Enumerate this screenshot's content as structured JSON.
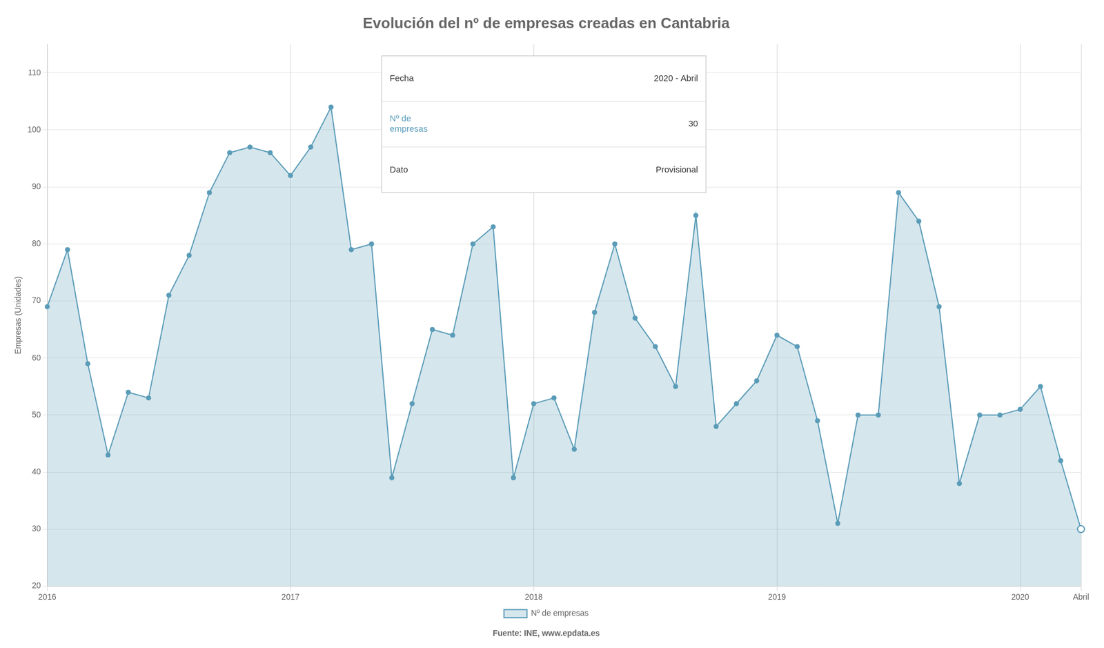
{
  "chart_data": {
    "type": "line",
    "title": "Evolución del nº de empresas creadas en Cantabria",
    "ylabel": "Empresas (Unidades)",
    "source": "Fuente: INE, www.epdata.es",
    "categories": [
      "2016",
      null,
      null,
      null,
      null,
      null,
      null,
      null,
      null,
      null,
      null,
      null,
      "2017",
      null,
      null,
      null,
      null,
      null,
      null,
      null,
      null,
      null,
      null,
      null,
      "2018",
      null,
      null,
      null,
      null,
      null,
      null,
      null,
      null,
      null,
      null,
      null,
      "2019",
      null,
      null,
      null,
      null,
      null,
      null,
      null,
      null,
      null,
      null,
      null,
      "2020",
      null,
      null,
      "Abril"
    ],
    "series": [
      {
        "name": "Nº de empresas",
        "color": "#5a9cb8",
        "marker": "circle",
        "values": [
          69,
          79,
          59,
          43,
          54,
          53,
          71,
          78,
          89,
          96,
          97,
          96,
          92,
          97,
          104,
          79,
          80,
          39,
          52,
          65,
          64,
          80,
          83,
          39,
          52,
          53,
          44,
          68,
          80,
          67,
          62,
          55,
          85,
          48,
          52,
          56,
          64,
          62,
          49,
          31,
          50,
          50,
          89,
          84,
          69,
          38,
          50,
          50,
          51,
          55,
          42,
          30
        ]
      }
    ],
    "ylim": [
      20,
      115
    ],
    "yticks": [
      20,
      30,
      40,
      50,
      60,
      70,
      80,
      90,
      100,
      110
    ],
    "grid": true,
    "legend": "bottom",
    "annotations": [
      [
        "Fecha",
        "2020 - Abril"
      ],
      [
        "Nº de\nempresas",
        "30"
      ],
      [
        "Dato",
        "Provisional"
      ]
    ]
  }
}
